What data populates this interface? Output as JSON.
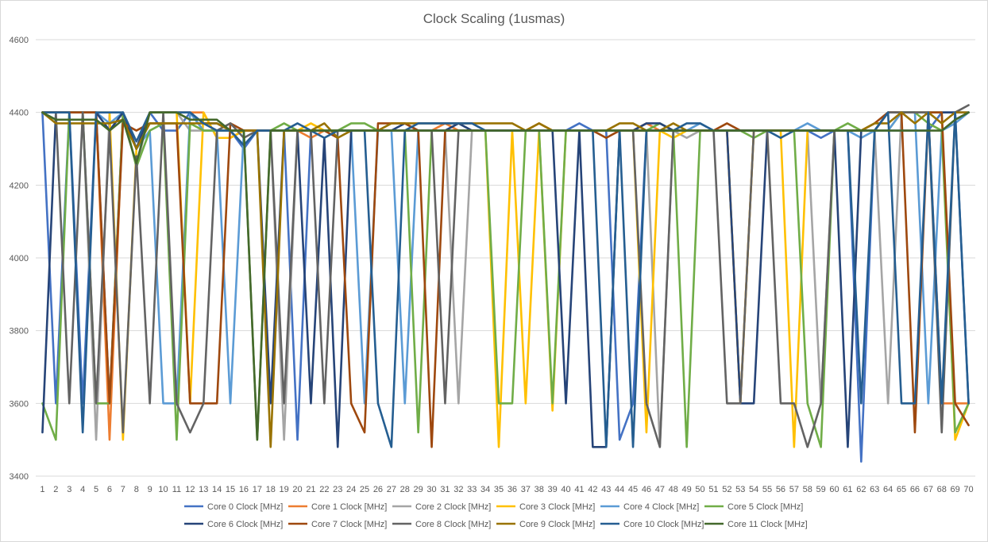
{
  "chart_data": {
    "type": "line",
    "title": "Clock Scaling (1usmas)",
    "xlabel": "",
    "ylabel": "",
    "ylim": [
      3400,
      4600
    ],
    "yticks": [
      3400,
      3600,
      3800,
      4000,
      4200,
      4400,
      4600
    ],
    "x": [
      1,
      2,
      3,
      4,
      5,
      6,
      7,
      8,
      9,
      10,
      11,
      12,
      13,
      14,
      15,
      16,
      17,
      18,
      19,
      20,
      21,
      22,
      23,
      24,
      25,
      26,
      27,
      28,
      29,
      30,
      31,
      32,
      33,
      34,
      35,
      36,
      37,
      38,
      39,
      40,
      41,
      42,
      43,
      44,
      45,
      46,
      47,
      48,
      49,
      50,
      51,
      52,
      53,
      54,
      55,
      56,
      57,
      58,
      59,
      60,
      61,
      62,
      63,
      64,
      65,
      66,
      67,
      68,
      69,
      70
    ],
    "grid": "horizontal",
    "legend_position": "bottom",
    "series": [
      {
        "name": "Core 0 Clock [MHz]",
        "color": "#4472C4",
        "values": [
          4400,
          3600,
          4400,
          3600,
          4400,
          3600,
          4400,
          4300,
          4400,
          4350,
          4350,
          4400,
          4350,
          4350,
          4350,
          4300,
          4350,
          4350,
          4350,
          3500,
          4350,
          4350,
          4350,
          4350,
          4350,
          4350,
          4350,
          4350,
          4350,
          4350,
          4350,
          4350,
          4350,
          4350,
          4350,
          4350,
          4350,
          4350,
          4350,
          4350,
          4370,
          4350,
          4350,
          3500,
          3600,
          4350,
          4350,
          4350,
          4350,
          4350,
          4350,
          4350,
          4350,
          4350,
          4350,
          4350,
          4350,
          4350,
          4330,
          4350,
          4350,
          3440,
          4350,
          4350,
          4350,
          4350,
          4350,
          4400,
          4400,
          3600
        ]
      },
      {
        "name": "Core 1 Clock [MHz]",
        "color": "#ED7D31",
        "values": [
          4400,
          4400,
          4400,
          4400,
          4400,
          3500,
          4400,
          4300,
          4400,
          4400,
          4400,
          4400,
          4400,
          4330,
          4330,
          4350,
          4350,
          4350,
          4350,
          4350,
          4330,
          4350,
          4350,
          4350,
          4350,
          4350,
          4350,
          4350,
          4350,
          4350,
          4370,
          4350,
          4350,
          4350,
          4350,
          4350,
          4350,
          4370,
          4350,
          4350,
          4350,
          4350,
          4350,
          4350,
          4350,
          4370,
          4350,
          4350,
          4350,
          4350,
          4350,
          4350,
          3600,
          4350,
          4350,
          4350,
          4350,
          4350,
          4350,
          4350,
          4350,
          4350,
          4350,
          4400,
          4400,
          4400,
          4400,
          3600,
          3600,
          3600
        ]
      },
      {
        "name": "Core 2 Clock [MHz]",
        "color": "#A5A5A5",
        "values": [
          4400,
          4400,
          4400,
          4400,
          3500,
          4400,
          4400,
          4250,
          4400,
          4400,
          4400,
          4350,
          4350,
          4350,
          4350,
          4350,
          4350,
          4350,
          3500,
          4350,
          4350,
          4350,
          4350,
          4350,
          4350,
          4350,
          4350,
          4350,
          4350,
          4350,
          4350,
          3600,
          4350,
          4350,
          4350,
          4350,
          4350,
          4350,
          4350,
          4350,
          4350,
          4350,
          4350,
          4350,
          4350,
          4350,
          3480,
          4350,
          4330,
          4350,
          4350,
          4350,
          4350,
          4350,
          4350,
          4350,
          4350,
          4350,
          3600,
          4350,
          4350,
          4350,
          4350,
          3600,
          4400,
          4400,
          4400,
          4400,
          4400,
          4400
        ]
      },
      {
        "name": "Core 3 Clock [MHz]",
        "color": "#FFC000",
        "values": [
          4400,
          4400,
          4400,
          4400,
          4400,
          4400,
          3500,
          4300,
          4400,
          4400,
          4400,
          3600,
          4400,
          4330,
          4330,
          4350,
          4350,
          4350,
          4350,
          4350,
          4370,
          4350,
          4350,
          4350,
          4350,
          4350,
          4350,
          4350,
          4350,
          4350,
          4350,
          4350,
          4350,
          4350,
          3480,
          4350,
          3600,
          4350,
          3580,
          4350,
          4350,
          4350,
          4350,
          4350,
          4350,
          3520,
          4350,
          4330,
          4350,
          4350,
          4350,
          4350,
          3600,
          4350,
          4350,
          4350,
          3480,
          4350,
          4350,
          4350,
          4350,
          4350,
          4350,
          4350,
          4400,
          4400,
          4400,
          4400,
          3500,
          3600
        ]
      },
      {
        "name": "Core 4 Clock [MHz]",
        "color": "#5B9BD5",
        "values": [
          4400,
          4400,
          4400,
          4400,
          4400,
          4370,
          4400,
          4300,
          4350,
          3600,
          3600,
          4400,
          4350,
          4350,
          3600,
          4350,
          4350,
          4350,
          4350,
          4350,
          4350,
          4350,
          4350,
          4350,
          3600,
          4350,
          4350,
          3600,
          4350,
          4350,
          4350,
          4350,
          4350,
          4350,
          4350,
          4350,
          4350,
          4350,
          4350,
          4350,
          4350,
          4350,
          4350,
          4350,
          4350,
          4350,
          4350,
          4350,
          4350,
          4370,
          4350,
          4350,
          4350,
          4350,
          4350,
          4350,
          4350,
          4370,
          4350,
          4350,
          4350,
          4330,
          4350,
          4350,
          4400,
          4400,
          3600,
          4350,
          4370,
          4400
        ]
      },
      {
        "name": "Core 5 Clock [MHz]",
        "color": "#70AD47",
        "values": [
          3600,
          3500,
          4400,
          4400,
          3600,
          3600,
          4400,
          4250,
          4350,
          4370,
          3500,
          4370,
          4350,
          4350,
          4350,
          4350,
          3500,
          4350,
          4370,
          4350,
          4350,
          4350,
          4350,
          4370,
          4370,
          4350,
          4350,
          4350,
          3520,
          4350,
          4350,
          4350,
          4350,
          4350,
          3600,
          3600,
          4350,
          4350,
          3600,
          4350,
          4350,
          4350,
          4350,
          4350,
          4350,
          4350,
          4370,
          4350,
          3480,
          4350,
          4350,
          4350,
          4350,
          4330,
          4350,
          4350,
          4350,
          3600,
          3480,
          4350,
          4370,
          4350,
          4350,
          4400,
          4400,
          4400,
          4370,
          4350,
          3520,
          3600
        ]
      },
      {
        "name": "Core 6 Clock [MHz]",
        "color": "#264478",
        "values": [
          3520,
          4400,
          4400,
          4400,
          4400,
          4350,
          4400,
          4300,
          4400,
          4400,
          4400,
          4400,
          4370,
          4370,
          4350,
          4350,
          4350,
          3600,
          4350,
          4350,
          3600,
          4330,
          3480,
          4350,
          4350,
          4350,
          4350,
          4370,
          4350,
          4350,
          4350,
          4370,
          4350,
          4350,
          4350,
          4350,
          4350,
          4350,
          4350,
          3600,
          4350,
          3480,
          3480,
          4350,
          4350,
          4370,
          4370,
          4350,
          4350,
          4350,
          4350,
          4350,
          3600,
          3600,
          4350,
          4350,
          4350,
          4350,
          4350,
          4350,
          3480,
          4350,
          4350,
          4400,
          4400,
          4400,
          4400,
          4400,
          4400,
          4400
        ]
      },
      {
        "name": "Core 7 Clock [MHz]",
        "color": "#9E480E",
        "values": [
          4400,
          4400,
          4400,
          4400,
          4400,
          3600,
          4370,
          4350,
          4370,
          4370,
          4370,
          3600,
          3600,
          3600,
          4370,
          4350,
          4350,
          4350,
          4350,
          4350,
          4350,
          4350,
          4330,
          3600,
          3520,
          4370,
          4370,
          4370,
          4350,
          3480,
          4350,
          4350,
          4350,
          4350,
          4350,
          4350,
          4350,
          4350,
          4350,
          4350,
          4350,
          4350,
          4330,
          4350,
          4350,
          4350,
          4350,
          4350,
          4350,
          4350,
          4350,
          4370,
          4350,
          4350,
          4350,
          4350,
          4350,
          4350,
          4350,
          4350,
          4350,
          4350,
          4370,
          4400,
          4400,
          3520,
          4400,
          4400,
          3600,
          3540
        ]
      },
      {
        "name": "Core 8 Clock [MHz]",
        "color": "#636363",
        "values": [
          4400,
          4400,
          3600,
          4400,
          3600,
          4350,
          3520,
          4280,
          3600,
          4400,
          3600,
          3520,
          3600,
          4350,
          4370,
          4330,
          4350,
          4350,
          3600,
          4350,
          4350,
          3600,
          4350,
          4350,
          4350,
          4350,
          4350,
          4350,
          4350,
          4350,
          3600,
          4350,
          4350,
          4350,
          4350,
          4350,
          4350,
          4350,
          4350,
          4350,
          4350,
          4350,
          4350,
          4350,
          4350,
          3600,
          3480,
          4350,
          4350,
          4350,
          4350,
          3600,
          3600,
          4350,
          4350,
          3600,
          3600,
          3480,
          3600,
          4350,
          4350,
          4350,
          4350,
          4400,
          4400,
          4400,
          4400,
          3520,
          4400,
          4420
        ]
      },
      {
        "name": "Core 9 Clock [MHz]",
        "color": "#997300",
        "values": [
          4400,
          4370,
          4370,
          4370,
          4370,
          4370,
          4380,
          4300,
          4370,
          4370,
          4370,
          4370,
          4370,
          4370,
          4350,
          4350,
          4350,
          3480,
          4350,
          4350,
          4350,
          4370,
          4330,
          4350,
          4350,
          4350,
          4370,
          4370,
          4370,
          4370,
          4370,
          4370,
          4370,
          4370,
          4370,
          4370,
          4350,
          4370,
          4350,
          4350,
          4350,
          4350,
          4350,
          4370,
          4370,
          4350,
          4350,
          4370,
          4350,
          4350,
          4350,
          4350,
          4350,
          4350,
          4350,
          4350,
          4350,
          4350,
          4350,
          4350,
          4350,
          4350,
          4370,
          4370,
          4400,
          4370,
          4400,
          4370,
          4400,
          4400
        ]
      },
      {
        "name": "Core 10 Clock [MHz]",
        "color": "#255E91",
        "values": [
          4400,
          4400,
          4400,
          3520,
          4400,
          4400,
          4400,
          4320,
          4400,
          4400,
          4400,
          4400,
          4370,
          4350,
          4350,
          4310,
          4350,
          4350,
          4350,
          4370,
          4350,
          4330,
          4350,
          4350,
          4350,
          3600,
          3480,
          4350,
          4370,
          4370,
          4370,
          4370,
          4370,
          4350,
          4350,
          4350,
          4350,
          4350,
          4350,
          4350,
          4350,
          4350,
          3480,
          4350,
          3480,
          4350,
          4350,
          4350,
          4370,
          4370,
          4350,
          4350,
          4350,
          4350,
          4350,
          4330,
          4350,
          4350,
          4350,
          4350,
          4350,
          3600,
          4350,
          4400,
          3600,
          3600,
          4400,
          3600,
          4400,
          3600
        ]
      },
      {
        "name": "Core 11 Clock [MHz]",
        "color": "#43682B",
        "values": [
          4400,
          4380,
          4380,
          4380,
          4380,
          4350,
          4380,
          4260,
          4400,
          4400,
          4400,
          4380,
          4380,
          4380,
          4350,
          4350,
          3500,
          4350,
          4350,
          4350,
          4350,
          4350,
          4350,
          4350,
          4350,
          4350,
          4350,
          4350,
          4350,
          4350,
          4350,
          4350,
          4350,
          4350,
          4350,
          4350,
          4350,
          4350,
          4350,
          4350,
          4350,
          4350,
          4350,
          4350,
          4350,
          4350,
          4350,
          4350,
          4350,
          4350,
          4350,
          4350,
          4350,
          4350,
          4350,
          4350,
          4350,
          4350,
          4350,
          4350,
          4350,
          4350,
          4350,
          4350,
          4350,
          4350,
          4350,
          4350,
          4380,
          4400
        ]
      }
    ]
  }
}
